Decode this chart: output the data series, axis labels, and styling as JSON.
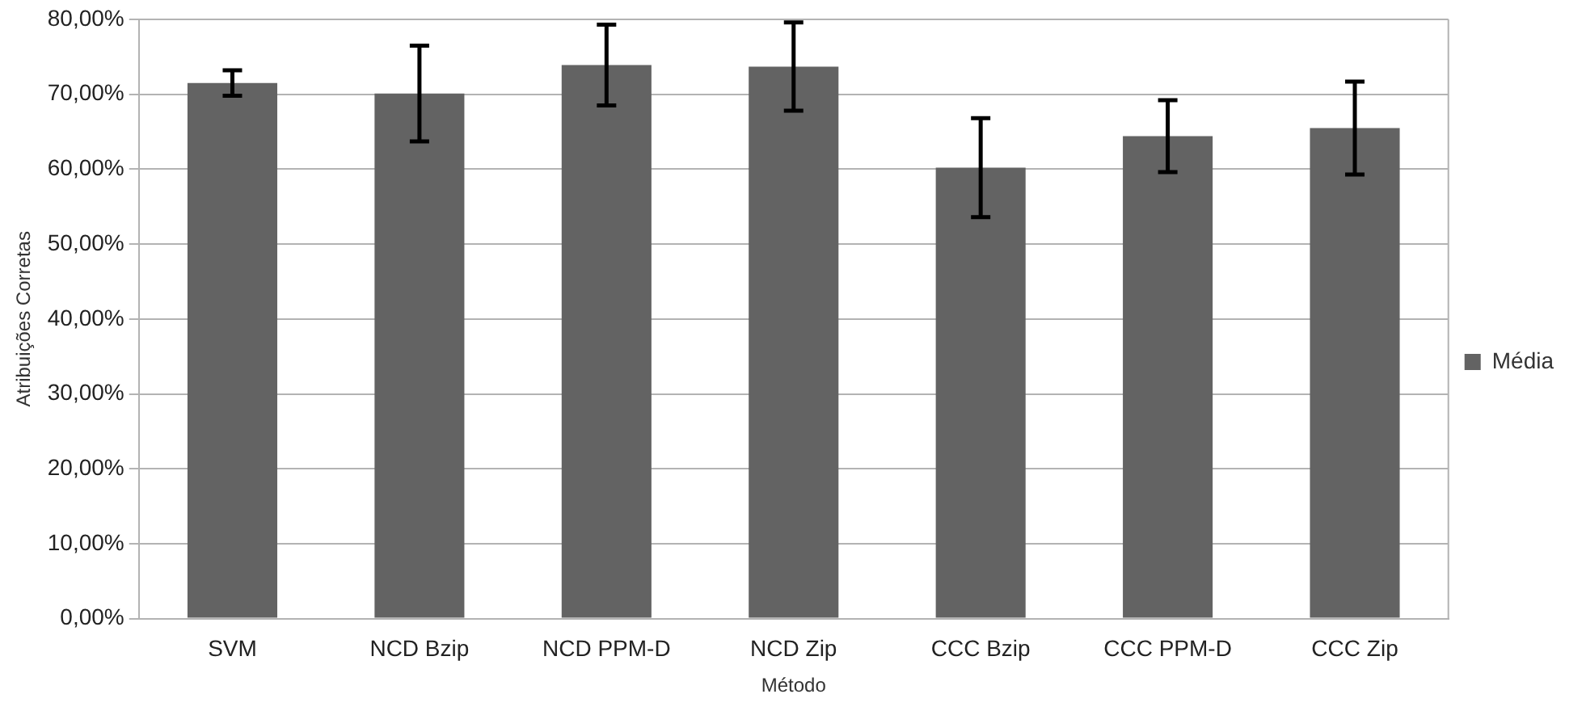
{
  "chart_data": {
    "type": "bar",
    "xlabel": "Método",
    "ylabel": "Atribuições Corretas",
    "categories": [
      "SVM",
      "NCD Bzip",
      "NCD PPM-D",
      "NCD Zip",
      "CCC Bzip",
      "CCC PPM-D",
      "CCC Zip"
    ],
    "series": [
      {
        "name": "Média",
        "color": "#636363",
        "values": [
          71.5,
          70.1,
          73.9,
          73.7,
          60.2,
          64.4,
          65.5
        ],
        "errors": [
          1.7,
          6.4,
          5.4,
          5.9,
          6.6,
          4.8,
          6.2
        ]
      }
    ],
    "ylim": [
      0,
      80
    ],
    "yticks": [
      {
        "value": 0,
        "label": "0,00%"
      },
      {
        "value": 10,
        "label": "10,00%"
      },
      {
        "value": 20,
        "label": "20,00%"
      },
      {
        "value": 30,
        "label": "30,00%"
      },
      {
        "value": 40,
        "label": "40,00%"
      },
      {
        "value": 50,
        "label": "50,00%"
      },
      {
        "value": 60,
        "label": "60,00%"
      },
      {
        "value": 70,
        "label": "70,00%"
      },
      {
        "value": 80,
        "label": "80,00%"
      }
    ],
    "grid": "y",
    "legend": "right"
  }
}
